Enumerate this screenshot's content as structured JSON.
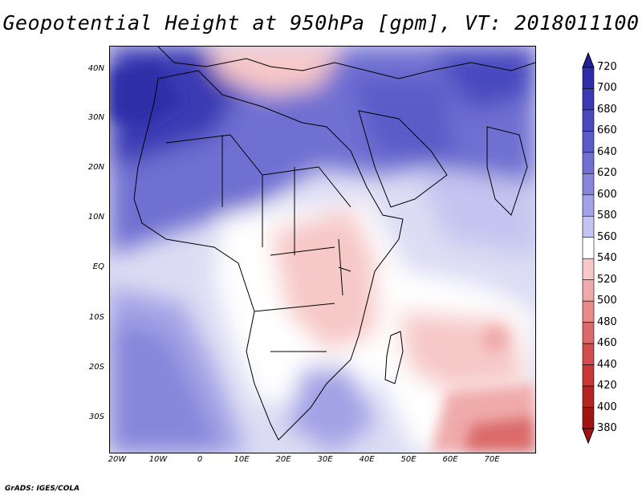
{
  "title": "Geopotential Height at 950hPa [gpm], VT: 2018011100",
  "map": {
    "lat_labels": [
      "40N",
      "30N",
      "20N",
      "10N",
      "EQ",
      "10S",
      "20S",
      "30S"
    ],
    "lon_labels": [
      "20W",
      "10W",
      "0",
      "10E",
      "20E",
      "30E",
      "40E",
      "50E",
      "60E",
      "70E"
    ],
    "field": "Geopotential Height",
    "level": "950hPa",
    "units": "gpm",
    "valid_time": "2018011100",
    "region": "Africa"
  },
  "colorbar": {
    "levels": [
      "720",
      "700",
      "680",
      "660",
      "640",
      "620",
      "600",
      "580",
      "560",
      "540",
      "520",
      "500",
      "480",
      "460",
      "440",
      "420",
      "400",
      "380"
    ],
    "colors": [
      "#1f1f96",
      "#2d2da8",
      "#3a3ab4",
      "#4a4abf",
      "#5c5cc9",
      "#7070d2",
      "#8686db",
      "#a2a2e6",
      "#c4c4f0",
      "#ffffff",
      "#f7c8c8",
      "#f0aaaa",
      "#e68a8a",
      "#dc6a6a",
      "#d24e4e",
      "#c63838",
      "#b42424",
      "#a01414"
    ]
  },
  "footer": "GrADS: IGES/COLA"
}
